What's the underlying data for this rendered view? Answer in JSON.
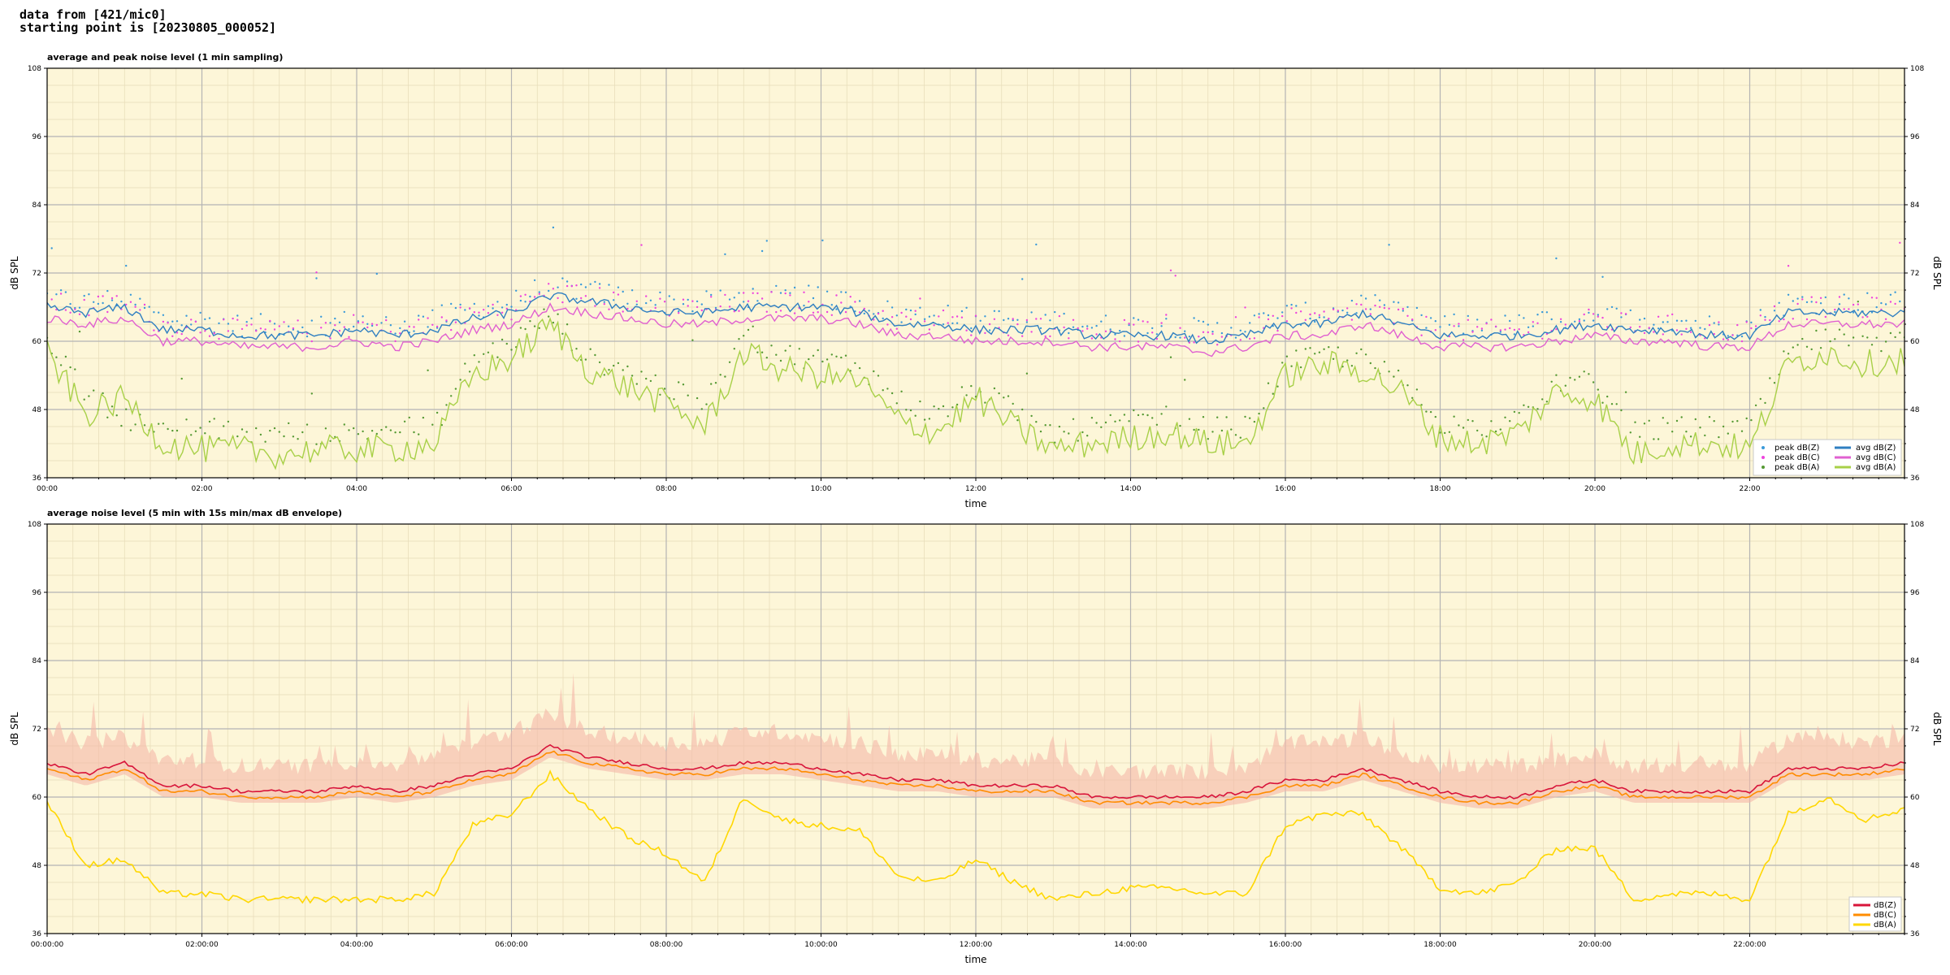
{
  "header": {
    "line1": "data from [421/mic0]",
    "line2": "starting point is [20230805_000052]"
  },
  "colors": {
    "background": "#fdf6d8",
    "peak_z": "#3a9ad9",
    "peak_c": "#ee44dd",
    "peak_a": "#559933",
    "avg_z": "#2f7fc1",
    "avg_c": "#e060d0",
    "avg_a": "#a8d048",
    "env_z": "#d8143a",
    "env_c": "#ff8c00",
    "env_a": "#ffd700",
    "envelope_fill": "#f5b8a8"
  },
  "chart_data": [
    {
      "type": "line",
      "title": "average and peak noise level (1 min sampling)",
      "xlabel": "time",
      "ylabel": "dB SPL",
      "xlim": [
        0,
        24
      ],
      "ylim": [
        36,
        108
      ],
      "yticks": [
        "36",
        "48",
        "60",
        "72",
        "84",
        "96",
        "108"
      ],
      "xticks": [
        "00:00",
        "02:00",
        "04:00",
        "06:00",
        "08:00",
        "10:00",
        "12:00",
        "14:00",
        "16:00",
        "18:00",
        "20:00",
        "22:00"
      ],
      "grid": true,
      "legend_position": "lower-right",
      "legend_columns": 2,
      "x_hours": [
        0,
        0.5,
        1,
        1.5,
        2,
        2.5,
        3,
        3.5,
        4,
        4.5,
        5,
        5.5,
        6,
        6.5,
        7,
        7.5,
        8,
        8.5,
        9,
        9.5,
        10,
        10.5,
        11,
        11.5,
        12,
        12.5,
        13,
        13.5,
        14,
        14.5,
        15,
        15.5,
        16,
        16.5,
        17,
        17.5,
        18,
        18.5,
        19,
        19.5,
        20,
        20.5,
        21,
        21.5,
        22,
        22.5,
        23,
        23.5,
        24
      ],
      "series": [
        {
          "name": "peak dB(Z)",
          "kind": "points",
          "values": [
            67,
            66,
            67,
            63,
            63,
            62,
            62,
            62,
            63,
            62,
            63,
            65,
            66,
            69,
            68,
            67,
            66,
            66,
            67,
            67,
            67,
            66,
            64,
            64,
            63,
            63,
            63,
            62,
            62,
            62,
            61,
            62,
            64,
            64,
            66,
            64,
            62,
            62,
            62,
            63,
            64,
            63,
            63,
            62,
            62,
            66,
            66,
            66,
            66
          ]
        },
        {
          "name": "peak dB(C)",
          "kind": "points",
          "values": [
            66,
            65,
            66,
            62,
            62,
            61,
            61,
            61,
            62,
            61,
            62,
            64,
            65,
            68,
            67,
            66,
            65,
            65,
            66,
            66,
            66,
            65,
            63,
            63,
            62,
            62,
            62,
            61,
            61,
            61,
            60,
            61,
            63,
            63,
            65,
            63,
            61,
            61,
            61,
            62,
            63,
            62,
            62,
            61,
            61,
            65,
            65,
            65,
            65
          ]
        },
        {
          "name": "peak dB(A)",
          "kind": "points",
          "values": [
            60,
            50,
            46,
            43,
            44,
            43,
            43,
            43,
            43,
            44,
            44,
            56,
            59,
            64,
            56,
            54,
            51,
            48,
            60,
            57,
            56,
            55,
            49,
            46,
            51,
            47,
            43,
            44,
            45,
            46,
            44,
            44,
            55,
            57,
            56,
            52,
            45,
            44,
            45,
            52,
            52,
            43,
            44,
            44,
            44,
            57,
            60,
            58,
            59
          ]
        },
        {
          "name": "avg dB(Z)",
          "kind": "line",
          "values": [
            66,
            65,
            66,
            62,
            62,
            61,
            61,
            61,
            62,
            61,
            62,
            64,
            65,
            68,
            67,
            66,
            65,
            65,
            66,
            66,
            66,
            65,
            63,
            63,
            62,
            62,
            62,
            61,
            61,
            61,
            60,
            61,
            63,
            63,
            65,
            63,
            61,
            61,
            61,
            62,
            63,
            62,
            62,
            61,
            61,
            65,
            65,
            65,
            65
          ]
        },
        {
          "name": "avg dB(C)",
          "kind": "line",
          "values": [
            64,
            63,
            64,
            60,
            60,
            59,
            59,
            59,
            60,
            59,
            60,
            62,
            63,
            66,
            65,
            64,
            63,
            63,
            64,
            64,
            64,
            63,
            61,
            61,
            60,
            60,
            60,
            59,
            59,
            59,
            58,
            59,
            61,
            61,
            63,
            61,
            59,
            59,
            59,
            60,
            61,
            60,
            60,
            59,
            59,
            63,
            63,
            63,
            63
          ]
        },
        {
          "name": "avg dB(A)",
          "kind": "line",
          "values": [
            58,
            47,
            50,
            42,
            41,
            41,
            40,
            41,
            41,
            41,
            42,
            54,
            57,
            63,
            55,
            52,
            49,
            45,
            58,
            55,
            54,
            53,
            46,
            44,
            50,
            45,
            41,
            42,
            43,
            44,
            42,
            42,
            54,
            56,
            55,
            51,
            43,
            42,
            44,
            51,
            50,
            40,
            42,
            42,
            41,
            56,
            58,
            56,
            57
          ]
        }
      ],
      "legend": [
        "peak dB(Z)",
        "peak dB(C)",
        "peak dB(A)",
        "avg dB(Z)",
        "avg dB(C)",
        "avg dB(A)"
      ]
    },
    {
      "type": "line",
      "title": "average noise level (5 min with 15s min/max dB envelope)",
      "xlabel": "time",
      "ylabel": "dB SPL",
      "xlim": [
        0,
        24
      ],
      "ylim": [
        36,
        108
      ],
      "yticks": [
        "36",
        "48",
        "60",
        "72",
        "84",
        "96",
        "108"
      ],
      "xticks": [
        "00:00:00",
        "02:00:00",
        "04:00:00",
        "06:00:00",
        "08:00:00",
        "10:00:00",
        "12:00:00",
        "14:00:00",
        "16:00:00",
        "18:00:00",
        "20:00:00",
        "22:00:00"
      ],
      "grid": true,
      "legend_position": "lower-right",
      "legend_columns": 1,
      "x_hours": [
        0,
        0.5,
        1,
        1.5,
        2,
        2.5,
        3,
        3.5,
        4,
        4.5,
        5,
        5.5,
        6,
        6.5,
        7,
        7.5,
        8,
        8.5,
        9,
        9.5,
        10,
        10.5,
        11,
        11.5,
        12,
        12.5,
        13,
        13.5,
        14,
        14.5,
        15,
        15.5,
        16,
        16.5,
        17,
        17.5,
        18,
        18.5,
        19,
        19.5,
        20,
        20.5,
        21,
        21.5,
        22,
        22.5,
        23,
        23.5,
        24
      ],
      "series": [
        {
          "name": "dB(Z)",
          "values": [
            66,
            64,
            66,
            62,
            62,
            61,
            61,
            61,
            62,
            61,
            62,
            64,
            65,
            69,
            67,
            66,
            65,
            65,
            66,
            66,
            65,
            64,
            63,
            63,
            62,
            62,
            62,
            60,
            60,
            60,
            60,
            61,
            63,
            63,
            65,
            63,
            61,
            60,
            60,
            62,
            63,
            61,
            61,
            61,
            61,
            65,
            65,
            65,
            66
          ]
        },
        {
          "name": "dB(C)",
          "values": [
            65,
            63,
            65,
            61,
            61,
            60,
            60,
            60,
            61,
            60,
            61,
            63,
            64,
            68,
            66,
            65,
            64,
            64,
            65,
            65,
            64,
            63,
            62,
            62,
            61,
            61,
            61,
            59,
            59,
            59,
            59,
            60,
            62,
            62,
            64,
            62,
            60,
            59,
            59,
            61,
            62,
            60,
            60,
            60,
            60,
            64,
            64,
            64,
            65
          ]
        },
        {
          "name": "dB(A)",
          "values": [
            59,
            48,
            49,
            43,
            43,
            42,
            42,
            42,
            42,
            42,
            43,
            55,
            57,
            64,
            58,
            53,
            50,
            45,
            60,
            56,
            55,
            54,
            46,
            45,
            49,
            45,
            42,
            43,
            44,
            44,
            43,
            43,
            55,
            57,
            57,
            51,
            44,
            43,
            45,
            51,
            51,
            42,
            43,
            43,
            42,
            57,
            60,
            56,
            58
          ]
        }
      ],
      "envelope_max": [
        70,
        68,
        69,
        65,
        65,
        64,
        64,
        64,
        65,
        64,
        66,
        68,
        70,
        73,
        70,
        69,
        68,
        68,
        70,
        70,
        69,
        68,
        66,
        66,
        65,
        65,
        65,
        63,
        63,
        63,
        63,
        64,
        68,
        68,
        69,
        66,
        64,
        64,
        64,
        65,
        66,
        64,
        64,
        64,
        64,
        69,
        69,
        68,
        69
      ],
      "legend": [
        "dB(Z)",
        "dB(C)",
        "dB(A)"
      ]
    }
  ]
}
